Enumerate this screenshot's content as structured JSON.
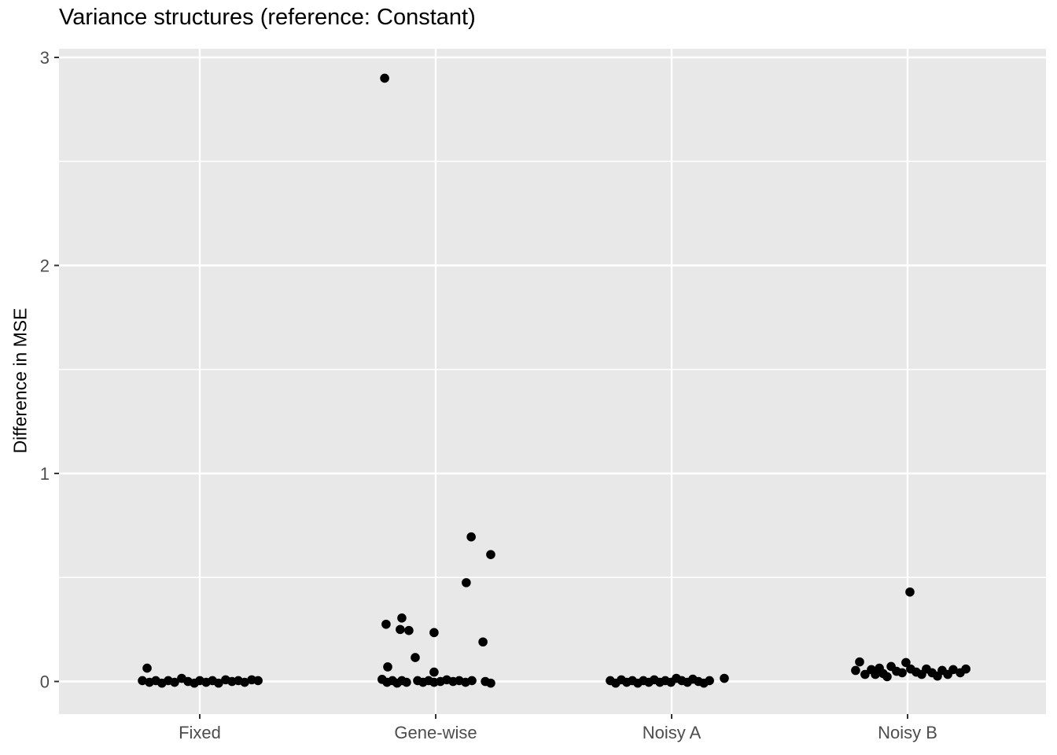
{
  "title": "Variance structures (reference: Constant)",
  "chart_data": {
    "type": "scatter",
    "subtype": "jittered strip plot (ggplot2 style)",
    "title": "Variance structures (reference: Constant)",
    "xlabel": "",
    "ylabel": "Difference in MSE",
    "categories": [
      "Fixed",
      "Gene-wise",
      "Noisy A",
      "Noisy B"
    ],
    "y_tick_labels": [
      "0",
      "1",
      "2",
      "3"
    ],
    "y_ticks": [
      0,
      1,
      2,
      3
    ],
    "y_minor_ticks": [
      0.5,
      1.5,
      2.5
    ],
    "ylim": [
      -0.16,
      3.04
    ],
    "grid": "white major and minor horizontal gridlines, white major vertical gridlines at category centers",
    "legend": "none",
    "colors": {
      "point": "#000000",
      "panel_background": "#E8E8E8",
      "gridline": "#FFFFFF",
      "tick_label": "#4D4D4D",
      "tick_mark": "#333333",
      "title_text": "#000000"
    },
    "series": [
      {
        "name": "Fixed",
        "points": [
          [
            -0.224,
            0.064
          ],
          [
            -0.244,
            0.004
          ],
          [
            -0.214,
            -0.004
          ],
          [
            -0.187,
            0.004
          ],
          [
            -0.161,
            -0.008
          ],
          [
            -0.134,
            0.004
          ],
          [
            -0.107,
            -0.004
          ],
          [
            -0.077,
            0.015
          ],
          [
            -0.05,
            0.0
          ],
          [
            -0.023,
            -0.008
          ],
          [
            0.0,
            0.004
          ],
          [
            0.027,
            -0.004
          ],
          [
            0.054,
            0.004
          ],
          [
            0.08,
            -0.008
          ],
          [
            0.11,
            0.008
          ],
          [
            0.137,
            0.0
          ],
          [
            0.164,
            0.004
          ],
          [
            0.191,
            -0.004
          ],
          [
            0.221,
            0.008
          ],
          [
            0.248,
            0.004
          ]
        ]
      },
      {
        "name": "Gene-wise",
        "points": [
          [
            -0.217,
            2.9
          ],
          [
            0.151,
            0.695
          ],
          [
            0.234,
            0.61
          ],
          [
            0.13,
            0.475
          ],
          [
            -0.144,
            0.305
          ],
          [
            -0.211,
            0.275
          ],
          [
            -0.151,
            0.25
          ],
          [
            -0.114,
            0.245
          ],
          [
            -0.007,
            0.235
          ],
          [
            0.201,
            0.19
          ],
          [
            -0.087,
            0.115
          ],
          [
            -0.204,
            0.07
          ],
          [
            -0.007,
            0.045
          ],
          [
            -0.228,
            0.01
          ],
          [
            -0.207,
            -0.004
          ],
          [
            -0.184,
            0.004
          ],
          [
            -0.164,
            -0.008
          ],
          [
            -0.144,
            0.004
          ],
          [
            -0.124,
            -0.004
          ],
          [
            -0.077,
            0.004
          ],
          [
            -0.054,
            -0.004
          ],
          [
            -0.03,
            0.004
          ],
          [
            -0.007,
            -0.004
          ],
          [
            0.02,
            0.0
          ],
          [
            0.047,
            0.008
          ],
          [
            0.074,
            0.0
          ],
          [
            0.1,
            0.004
          ],
          [
            0.127,
            -0.004
          ],
          [
            0.154,
            0.004
          ],
          [
            0.211,
            0.0
          ],
          [
            0.234,
            -0.008
          ]
        ]
      },
      {
        "name": "Noisy A",
        "points": [
          [
            -0.261,
            0.004
          ],
          [
            -0.238,
            -0.008
          ],
          [
            -0.214,
            0.008
          ],
          [
            -0.191,
            -0.004
          ],
          [
            -0.167,
            0.004
          ],
          [
            -0.144,
            -0.008
          ],
          [
            -0.12,
            0.004
          ],
          [
            -0.097,
            -0.004
          ],
          [
            -0.074,
            0.008
          ],
          [
            -0.05,
            -0.004
          ],
          [
            -0.027,
            0.004
          ],
          [
            -0.003,
            -0.004
          ],
          [
            0.02,
            0.015
          ],
          [
            0.043,
            0.004
          ],
          [
            0.067,
            -0.004
          ],
          [
            0.09,
            0.011
          ],
          [
            0.114,
            0.0
          ],
          [
            0.137,
            -0.008
          ],
          [
            0.161,
            0.004
          ],
          [
            0.224,
            0.015
          ]
        ]
      },
      {
        "name": "Noisy B",
        "points": [
          [
            0.01,
            0.43
          ],
          [
            -0.204,
            0.094
          ],
          [
            -0.221,
            0.053
          ],
          [
            -0.181,
            0.034
          ],
          [
            -0.154,
            0.057
          ],
          [
            -0.137,
            0.034
          ],
          [
            -0.12,
            0.064
          ],
          [
            -0.104,
            0.038
          ],
          [
            -0.087,
            0.023
          ],
          [
            -0.07,
            0.072
          ],
          [
            -0.047,
            0.049
          ],
          [
            -0.023,
            0.042
          ],
          [
            -0.007,
            0.091
          ],
          [
            0.013,
            0.06
          ],
          [
            0.037,
            0.045
          ],
          [
            0.06,
            0.034
          ],
          [
            0.08,
            0.06
          ],
          [
            0.104,
            0.042
          ],
          [
            0.127,
            0.026
          ],
          [
            0.147,
            0.053
          ],
          [
            0.171,
            0.034
          ],
          [
            0.194,
            0.057
          ],
          [
            0.224,
            0.042
          ],
          [
            0.248,
            0.06
          ]
        ]
      }
    ]
  }
}
